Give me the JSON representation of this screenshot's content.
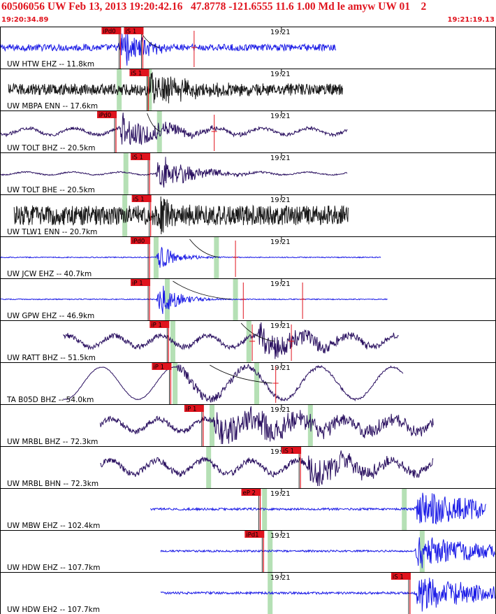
{
  "header": {
    "title": "60506056 UW Feb 13, 2013 19:20:42.16   47.8778 -121.6555 11.6 1.00 Md le amyw UW 01    2",
    "time_start": "19:20:34.89",
    "time_end": "19:21:19.13"
  },
  "colors": {
    "accent_red": "#e0141e",
    "trace_blue": "#1a1ae6",
    "trace_purple": "#2a1060",
    "trace_dark": "#1a1a1a",
    "coda_green": "#b5e0b5",
    "border": "#000000"
  },
  "chart_data": {
    "type": "line",
    "title": "",
    "xlabel": "",
    "ylabel": "",
    "time_range": [
      "19:20:34.89",
      "19:21:19.13"
    ],
    "minute_marker_label": "19:21",
    "minute_marker_seconds": 25.11,
    "total_seconds": 44.24,
    "grid": false,
    "legend": "none",
    "series": [
      {
        "name": "UW HTW EHZ -- 11.8km",
        "start_s": 0.0,
        "end_s": 30.0,
        "color": "blue",
        "style": "burst",
        "amp": 0.35,
        "burst_s": 10.9,
        "burst_amp": 1.0,
        "burst_decay": 0.35,
        "picks": [
          {
            "label": "iPd0",
            "t_s": 9.9
          },
          {
            "label": "iS 1",
            "t_s": 11.9
          }
        ],
        "coda_bands": [],
        "red_ticks": [
          17.3
        ],
        "arc": [
          12.4,
          14.2
        ]
      },
      {
        "name": "UW MBPA ENN -- 17.6km",
        "start_s": 0.7,
        "end_s": 30.6,
        "color": "dark",
        "style": "noise",
        "amp": 0.55,
        "burst_s": 13.4,
        "burst_amp": 0.85,
        "burst_decay": 0.6,
        "picks": [
          {
            "label": "iS 1",
            "t_s": 12.4
          }
        ],
        "coda_bands": [
          10.6,
          13.3
        ],
        "red_ticks": [],
        "arc": null
      },
      {
        "name": "UW TOLT BHZ -- 20.5km",
        "start_s": 0.0,
        "end_s": 31.0,
        "color": "purple",
        "style": "wave",
        "amp": 0.3,
        "burst_s": 10.9,
        "burst_amp": 0.95,
        "burst_decay": 0.6,
        "picks": [
          {
            "label": "iPd0",
            "t_s": 9.5
          }
        ],
        "coda_bands": [
          14.2
        ],
        "red_ticks": [
          19.1
        ],
        "arc": [
          13.1,
          14.3
        ]
      },
      {
        "name": "UW TOLT BHE -- 20.5km",
        "start_s": 0.0,
        "end_s": 31.0,
        "color": "purple",
        "style": "wave",
        "amp": 0.12,
        "burst_s": 14.2,
        "burst_amp": 1.0,
        "burst_decay": 0.5,
        "picks": [
          {
            "label": "iS 1",
            "t_s": 12.5
          }
        ],
        "coda_bands": [
          11.2
        ],
        "red_ticks": [],
        "arc": null
      },
      {
        "name": "UW TLW1 ENN -- 20.7km",
        "start_s": 1.2,
        "end_s": 31.1,
        "color": "dark",
        "style": "noise",
        "amp": 0.95,
        "burst_s": 14.3,
        "burst_amp": 0.9,
        "burst_decay": 0.2,
        "picks": [
          {
            "label": "iS 1",
            "t_s": 12.6
          }
        ],
        "coda_bands": [
          11.1
        ],
        "red_ticks": [],
        "arc": null
      },
      {
        "name": "UW JCW EHZ -- 40.7km",
        "start_s": 0.0,
        "end_s": 34.0,
        "color": "blue",
        "style": "burst",
        "amp": 0.05,
        "burst_s": 14.3,
        "burst_amp": 0.7,
        "burst_decay": 0.25,
        "picks": [
          {
            "label": "iPd0",
            "t_s": 12.5
          }
        ],
        "coda_bands": [
          13.9,
          19.3
        ],
        "red_ticks": [
          21.0
        ],
        "arc": [
          16.9,
          19.5
        ]
      },
      {
        "name": "UW GPW EHZ -- 46.9km",
        "start_s": 0.0,
        "end_s": 34.6,
        "color": "blue",
        "style": "burst",
        "amp": 0.05,
        "burst_s": 14.3,
        "burst_amp": 1.0,
        "burst_decay": 0.25,
        "picks": [
          {
            "label": "iP 1",
            "t_s": 12.5
          }
        ],
        "coda_bands": [
          14.9,
          21.0
        ],
        "red_ticks": [
          21.7,
          27.0
        ],
        "arc": [
          15.4,
          20.6
        ]
      },
      {
        "name": "UW RATT BHZ -- 51.5km",
        "start_s": 5.6,
        "end_s": 35.6,
        "color": "purple",
        "style": "wave",
        "amp": 0.5,
        "burst_s": 23.3,
        "burst_amp": 0.9,
        "burst_decay": 0.7,
        "picks": [
          {
            "label": "iP 1",
            "t_s": 14.2
          }
        ],
        "coda_bands": [
          15.4,
          22.2
        ],
        "red_ticks": [
          22.5,
          26.0
        ],
        "arc": [
          21.5,
          24.5
        ]
      },
      {
        "name": "TA B05D BHZ -- 54.0km",
        "start_s": 5.6,
        "end_s": 36.0,
        "color": "purple",
        "style": "sine",
        "amp": 0.9,
        "burst_s": 16.0,
        "burst_amp": 0.3,
        "burst_decay": 1.5,
        "picks": [
          {
            "label": "iP 1",
            "t_s": 14.4
          }
        ],
        "coda_bands": [
          15.6,
          22.9
        ],
        "red_ticks": [
          24.6
        ],
        "arc": [
          18.7,
          24.3
        ]
      },
      {
        "name": "UW MRBL BHZ -- 72.3km",
        "start_s": 8.9,
        "end_s": 38.7,
        "color": "purple",
        "style": "wave",
        "amp": 0.55,
        "burst_s": 19.3,
        "burst_amp": 0.8,
        "burst_decay": 2.5,
        "picks": [
          {
            "label": "iP 1",
            "t_s": 17.3
          }
        ],
        "coda_bands": [
          18.9,
          27.7
        ],
        "red_ticks": [],
        "arc": null
      },
      {
        "name": "UW MRBL BHN -- 72.3km",
        "start_s": 8.9,
        "end_s": 38.7,
        "color": "purple",
        "style": "wave",
        "amp": 0.6,
        "burst_s": 27.7,
        "burst_amp": 0.85,
        "burst_decay": 0.8,
        "picks": [
          {
            "label": "iS 1",
            "t_s": 26.0
          }
        ],
        "coda_bands": [
          18.6
        ],
        "red_ticks": [],
        "arc": null
      },
      {
        "name": "UW MBW EHZ -- 102.4km",
        "start_s": 13.4,
        "end_s": 43.4,
        "color": "blue",
        "style": "burst",
        "amp": 0.12,
        "burst_s": 37.4,
        "burst_amp": 1.0,
        "burst_decay": 1.2,
        "picks": [
          {
            "label": "eP 2",
            "t_s": 22.4
          }
        ],
        "coda_bands": [
          23.6,
          36.1
        ],
        "red_ticks": [],
        "arc": null
      },
      {
        "name": "UW HDW EHZ -- 107.7km",
        "start_s": 14.3,
        "end_s": 44.24,
        "color": "blue",
        "style": "burst",
        "amp": 0.1,
        "burst_s": 37.4,
        "burst_amp": 1.0,
        "burst_decay": 1.0,
        "picks": [
          {
            "label": "iPd1",
            "t_s": 22.7
          }
        ],
        "coda_bands": [
          24.1,
          37.7
        ],
        "red_ticks": [],
        "arc": null
      },
      {
        "name": "UW HDW EH2 -- 107.7km",
        "start_s": 14.3,
        "end_s": 44.24,
        "color": "blue",
        "style": "burst",
        "amp": 0.12,
        "burst_s": 37.4,
        "burst_amp": 1.0,
        "burst_decay": 1.0,
        "picks": [
          {
            "label": "iS 1",
            "t_s": 35.8
          }
        ],
        "coda_bands": [
          24.1
        ],
        "red_ticks": [],
        "arc": null
      }
    ]
  }
}
